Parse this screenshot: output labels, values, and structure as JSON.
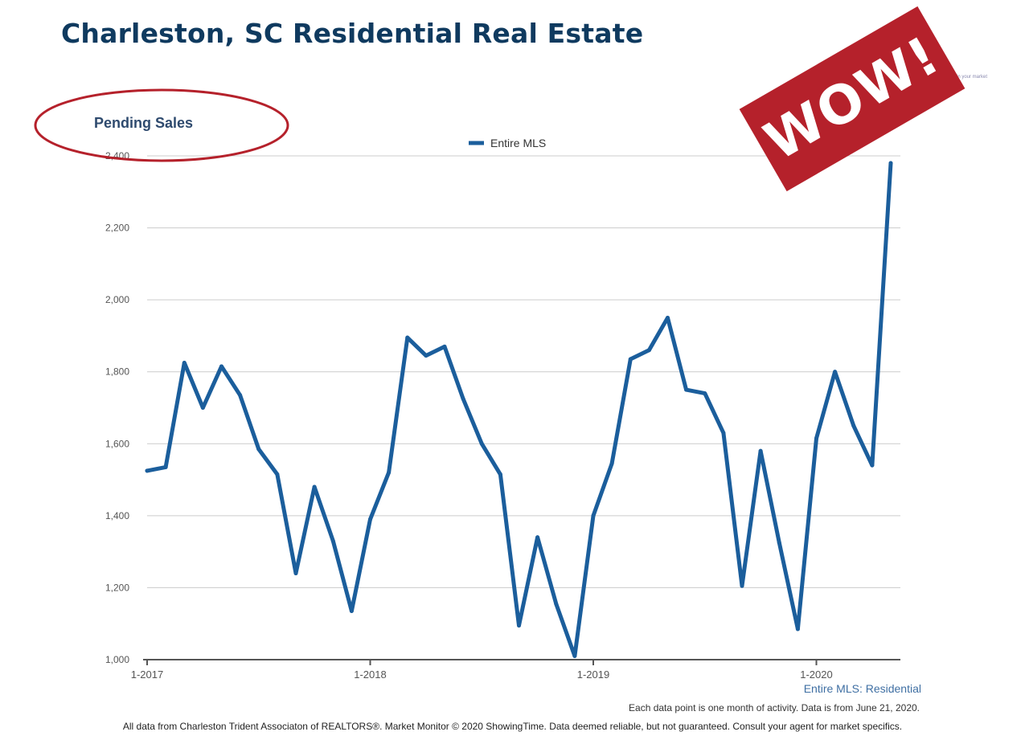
{
  "page": {
    "title": "Charleston, SC Residential Real Estate",
    "stamp": "WOW!",
    "clipped_text": "in your market",
    "series_caption": "Entire MLS: Residential",
    "data_note": "Each data point is one month of activity. Data is from June 21, 2020.",
    "footer": "All data from Charleston Trident Associaton of REALTORS®. Market Monitor © 2020 ShowingTime. Data deemed reliable, but not guaranteed. Consult your agent for market specifics.",
    "colors": {
      "title": "#0f3a5f",
      "line": "#1b5e9c",
      "stamp": "#b5212b",
      "circle": "#b5212b"
    }
  },
  "chart_data": {
    "type": "line",
    "title": "Pending Sales",
    "xlabel": "",
    "ylabel": "",
    "ylim": [
      1000,
      2400
    ],
    "yticks": [
      "1,000",
      "1,200",
      "1,400",
      "1,600",
      "1,800",
      "2,000",
      "2,200",
      "2,400"
    ],
    "ytick_values": [
      1000,
      1200,
      1400,
      1600,
      1800,
      2000,
      2200,
      2400
    ],
    "xticks": [
      "1-2017",
      "1-2018",
      "1-2019",
      "1-2020"
    ],
    "grid": true,
    "legend": "top-center",
    "x": [
      "1-2017",
      "2-2017",
      "3-2017",
      "4-2017",
      "5-2017",
      "6-2017",
      "7-2017",
      "8-2017",
      "9-2017",
      "10-2017",
      "11-2017",
      "12-2017",
      "1-2018",
      "2-2018",
      "3-2018",
      "4-2018",
      "5-2018",
      "6-2018",
      "7-2018",
      "8-2018",
      "9-2018",
      "10-2018",
      "11-2018",
      "12-2018",
      "1-2019",
      "2-2019",
      "3-2019",
      "4-2019",
      "5-2019",
      "6-2019",
      "7-2019",
      "8-2019",
      "9-2019",
      "10-2019",
      "11-2019",
      "12-2019",
      "1-2020",
      "2-2020",
      "3-2020",
      "4-2020",
      "5-2020"
    ],
    "series": [
      {
        "name": "Entire MLS",
        "color": "#1b5e9c",
        "values": [
          1525,
          1535,
          1825,
          1700,
          1815,
          1735,
          1585,
          1515,
          1240,
          1480,
          1330,
          1135,
          1390,
          1520,
          1895,
          1845,
          1870,
          1725,
          1600,
          1515,
          1095,
          1340,
          1155,
          1010,
          1400,
          1545,
          1835,
          1860,
          1950,
          1750,
          1740,
          1630,
          1205,
          1580,
          1325,
          1085,
          1615,
          1800,
          1650,
          1540,
          2380
        ]
      }
    ]
  }
}
